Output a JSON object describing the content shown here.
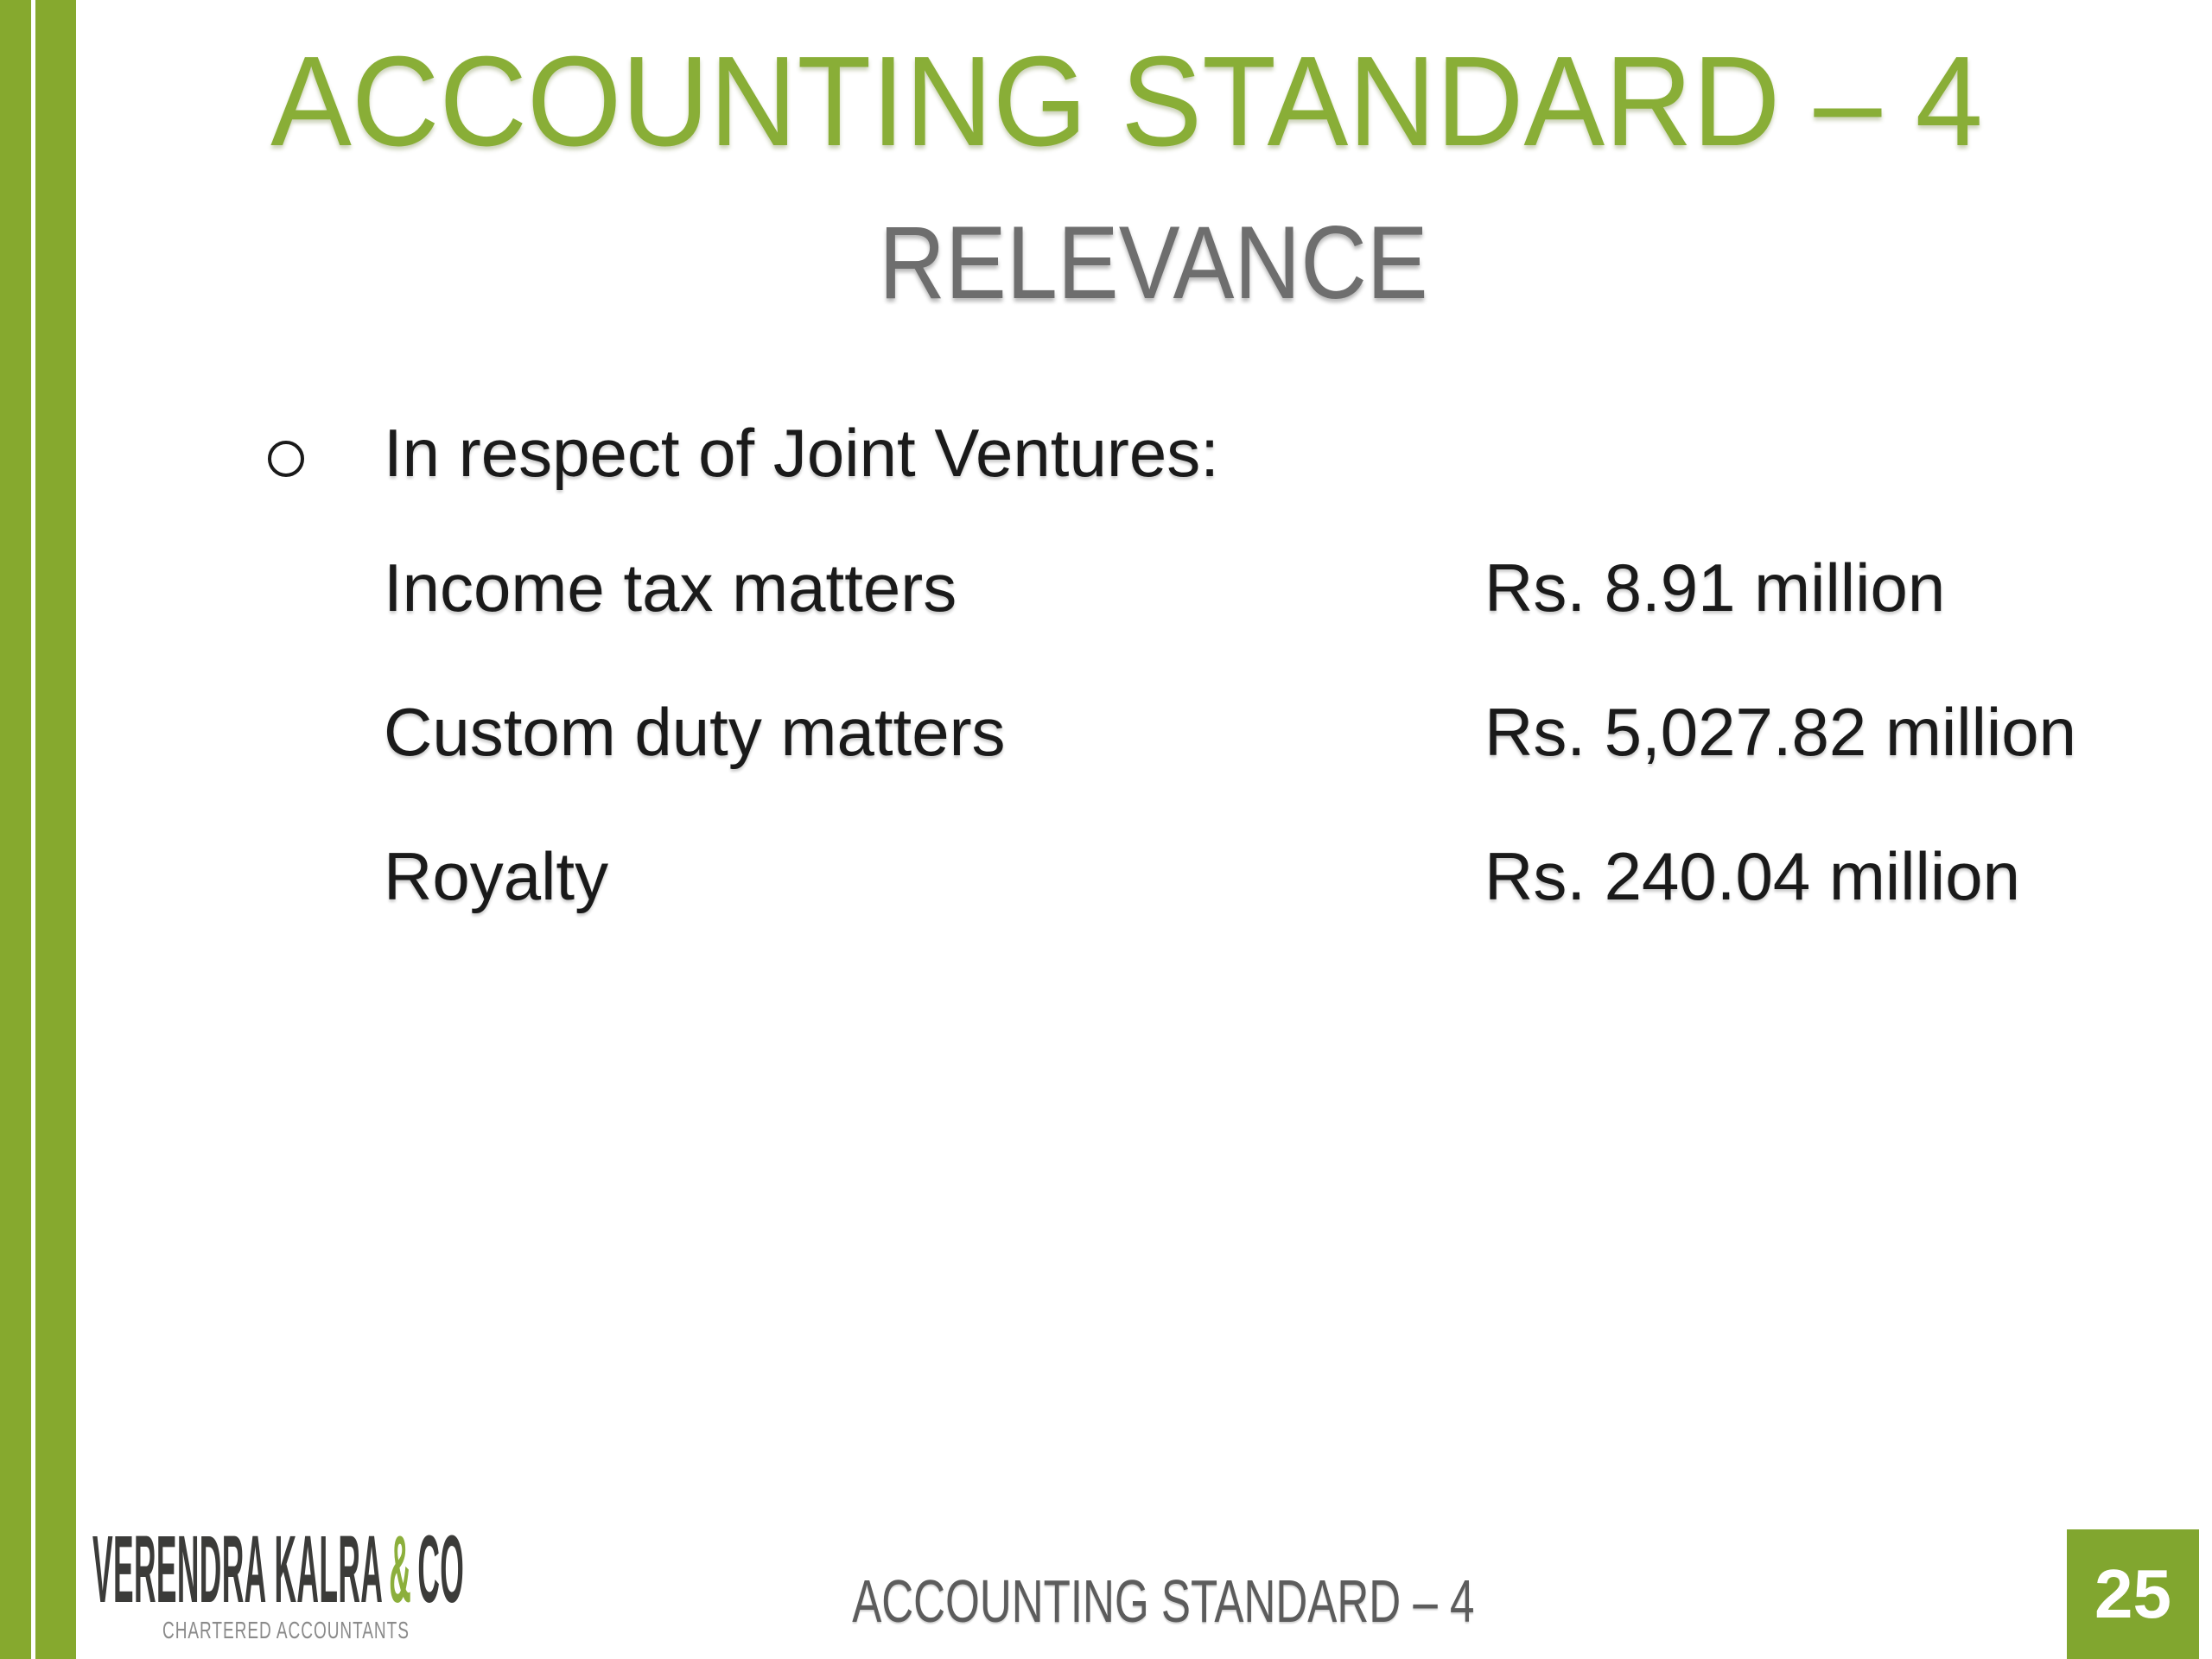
{
  "colors": {
    "accent": "#86A92E",
    "title_green": "#89AE37",
    "subtitle_gray": "#6E6E6E",
    "body_text": "#1A1A1A",
    "footer_gray": "#5C5C5C",
    "logo_dark": "#3B3B39",
    "logo_amp_green": "#8CAF3C",
    "logo_tagline_gray": "#8A8A8A",
    "page_number_bg": "#81A62F",
    "page_number_text": "#FFFFFF"
  },
  "header": {
    "title": "ACCOUNTING STANDARD – 4",
    "subtitle": "RELEVANCE"
  },
  "content": {
    "bullet": {
      "marker": "hollow-circle-icon",
      "text": "In respect of Joint Ventures:"
    },
    "items": [
      {
        "label": "Income tax matters",
        "value": "Rs. 8.91 million"
      },
      {
        "label": "Custom duty matters",
        "value": "Rs. 5,027.82 million"
      },
      {
        "label": "Royalty",
        "value": "Rs. 240.04 million"
      }
    ]
  },
  "footer": {
    "logo": {
      "name": "VERENDRA KALRA",
      "ampersand": "&",
      "suffix": "CO",
      "tagline": "CHARTERED ACCOUNTANTS"
    },
    "slide_title": "ACCOUNTING STANDARD – 4",
    "page_number": "25"
  }
}
